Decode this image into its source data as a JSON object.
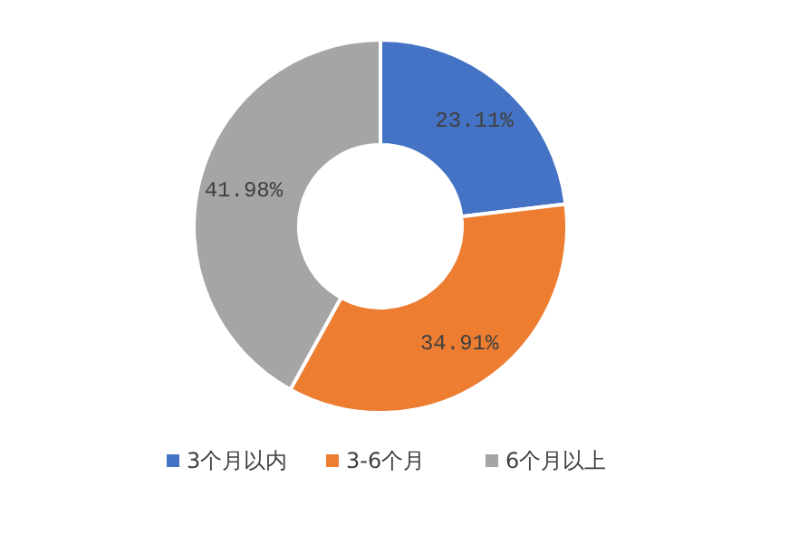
{
  "chart_data": {
    "type": "donut",
    "categories": [
      "3个月以内",
      "3-6个月",
      "6个月以上"
    ],
    "values": [
      23.11,
      34.91,
      41.98
    ],
    "colors": [
      "#4472c4",
      "#ed7d31",
      "#a5a5a5"
    ],
    "value_labels": [
      "23.11%",
      "34.91%",
      "41.98%"
    ],
    "legend": "bottom"
  }
}
